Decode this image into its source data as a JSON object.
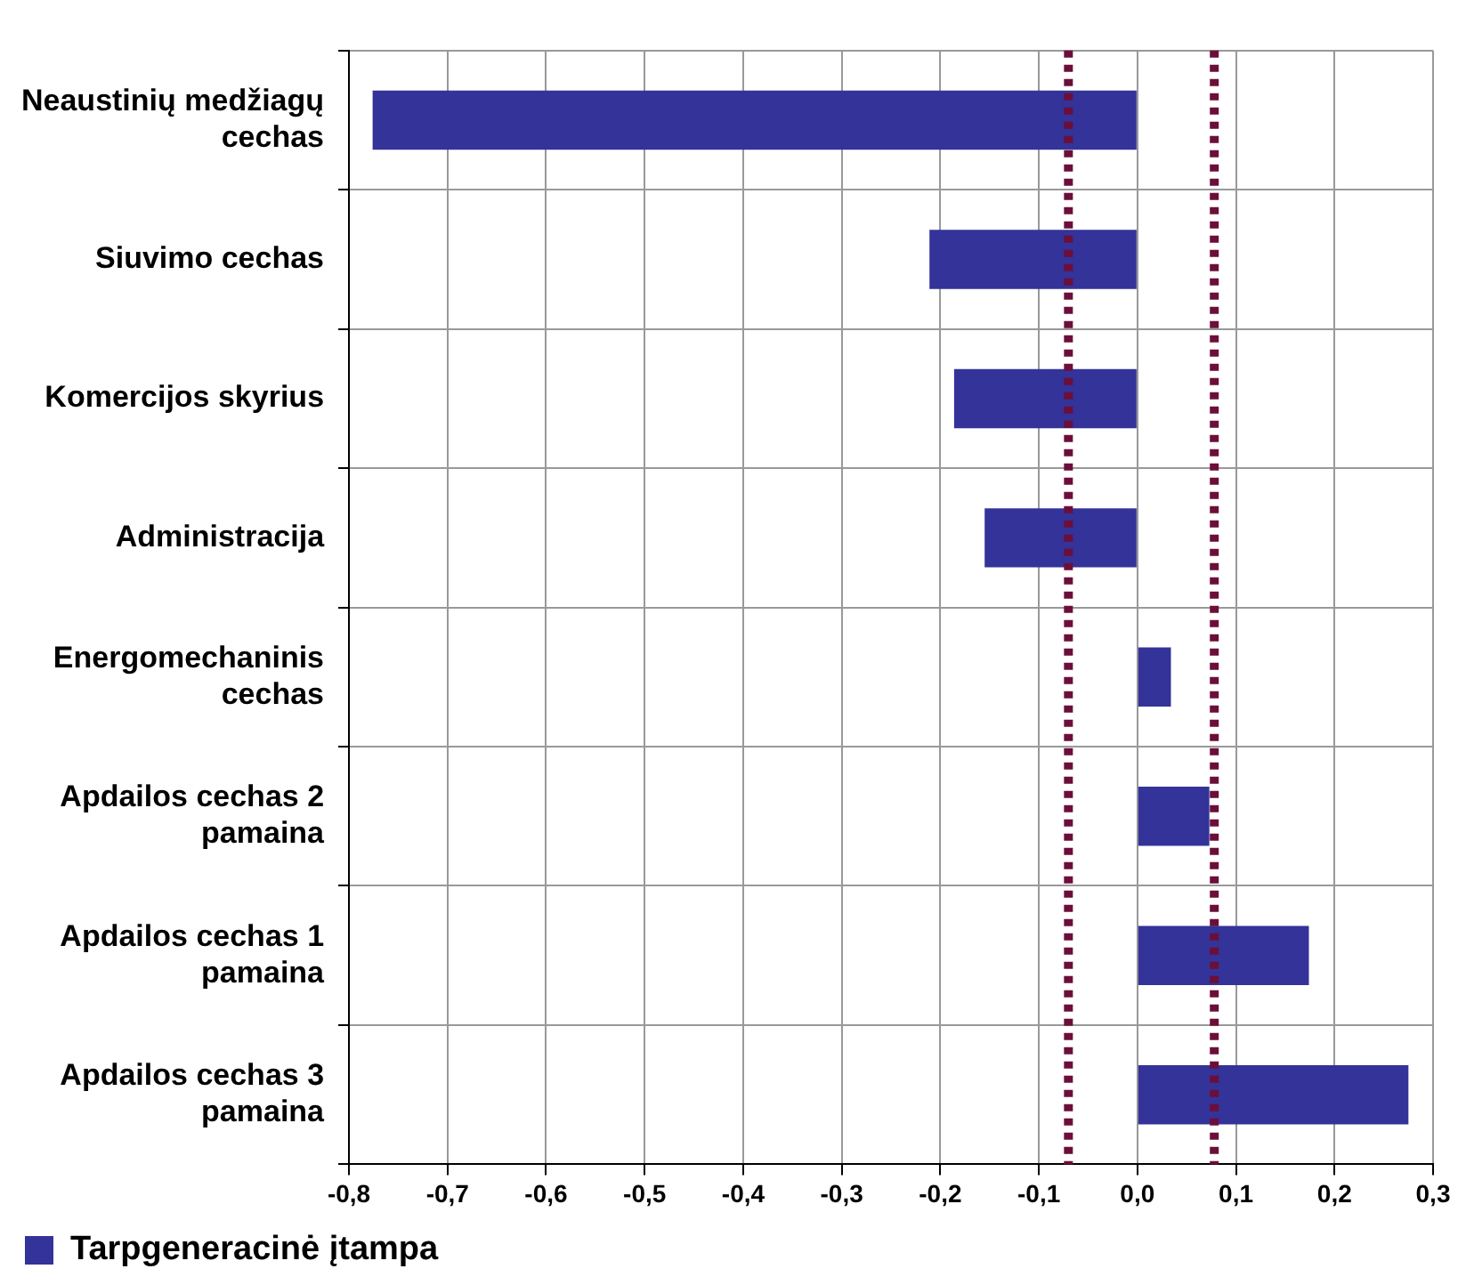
{
  "chart_data": {
    "type": "bar",
    "orientation": "horizontal",
    "categories": [
      "Neaustinių medžiagų cechas",
      "Siuvimo cechas",
      "Komercijos skyrius",
      "Administracija",
      "Energomechaninis cechas",
      "Apdailos cechas 2 pamaina",
      "Apdailos cechas 1 pamaina",
      "Apdailos cechas 3 pamaina"
    ],
    "series": [
      {
        "name": "Tarpgeneracinė įtampa",
        "color": "#333399",
        "values": [
          -0.776,
          -0.211,
          -0.186,
          -0.155,
          0.034,
          0.073,
          0.174,
          0.275
        ]
      }
    ],
    "xlim": [
      -0.8,
      0.3
    ],
    "xticks": [
      {
        "value": -0.8,
        "label": "-0,8"
      },
      {
        "value": -0.7,
        "label": "-0,7"
      },
      {
        "value": -0.6,
        "label": "-0,6"
      },
      {
        "value": -0.5,
        "label": "-0,5"
      },
      {
        "value": -0.4,
        "label": "-0,4"
      },
      {
        "value": -0.3,
        "label": "-0,3"
      },
      {
        "value": -0.2,
        "label": "-0,2"
      },
      {
        "value": -0.1,
        "label": "-0,1"
      },
      {
        "value": 0,
        "label": "0,0"
      },
      {
        "value": 0.1,
        "label": "0,1"
      },
      {
        "value": 0.2,
        "label": "0,2"
      },
      {
        "value": 0.3,
        "label": "0,3"
      }
    ],
    "ref_lines": [
      {
        "axis": "x",
        "value": -0.07,
        "color": "#6b0f3a",
        "line_style": "dotted"
      },
      {
        "axis": "x",
        "value": 0.078,
        "color": "#6b0f3a",
        "line_style": "dotted"
      }
    ],
    "grid": true,
    "legend": "bottom left"
  }
}
